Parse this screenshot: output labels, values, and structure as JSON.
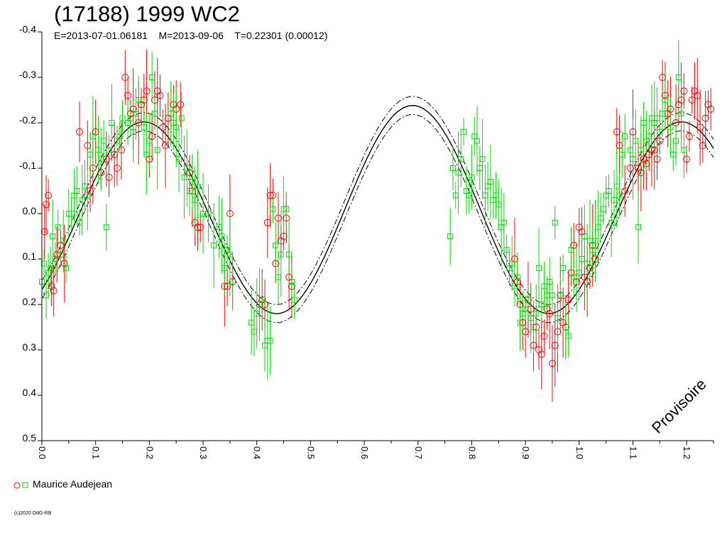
{
  "chart_data": {
    "type": "scatter",
    "title": "(17188) 1999 WC2",
    "subtitle": "E=2013-07-01.06181    M=2013-09-06    T=0.22301 (0.00012)",
    "stamp": "Provisoire",
    "copyright": "(c)2020 OdG-RB",
    "x_range": [
      0.0,
      1.25
    ],
    "y_range": [
      -0.4,
      0.5
    ],
    "y_inverted": true,
    "x_ticks": [
      "0.0",
      "0.1",
      "0.2",
      "0.3",
      "0.4",
      "0.5",
      "0.6",
      "0.7",
      "0.8",
      "0.9",
      "1.0",
      "1.1",
      "1.2"
    ],
    "y_ticks": [
      "-0.4",
      "-0.3",
      "-0.2",
      "-0.1",
      "0.0",
      "0.1",
      "0.2",
      "0.3",
      "0.4",
      "0.5"
    ],
    "legend": [
      {
        "label": "Maurice Audejean",
        "markers": [
          "red-circle",
          "green-square"
        ]
      }
    ],
    "colors": {
      "series_a": "#ff0000",
      "series_b": "#00dd00",
      "model": "#000000"
    },
    "model_curve": {
      "type": "fourier",
      "mean": 0.0,
      "amplitude": 0.22,
      "phase_of_max_brightness": 0.19,
      "period_fraction": 0.5,
      "envelope": 0.02
    },
    "series": [
      {
        "name": "Maurice Audejean",
        "marker": "circle",
        "color": "#ff0000",
        "points": [
          [
            0.005,
            0.04
          ],
          [
            0.008,
            -0.02
          ],
          [
            0.012,
            -0.04
          ],
          [
            0.018,
            0.16
          ],
          [
            0.022,
            0.17
          ],
          [
            0.028,
            0.09
          ],
          [
            0.035,
            0.07
          ],
          [
            0.042,
            0.11
          ],
          [
            0.07,
            -0.18
          ],
          [
            0.085,
            -0.15
          ],
          [
            0.09,
            -0.05
          ],
          [
            0.095,
            -0.1
          ],
          [
            0.1,
            -0.18
          ],
          [
            0.11,
            -0.09
          ],
          [
            0.12,
            -0.12
          ],
          [
            0.125,
            -0.08
          ],
          [
            0.135,
            -0.13
          ],
          [
            0.14,
            -0.1
          ],
          [
            0.148,
            -0.14
          ],
          [
            0.155,
            -0.3
          ],
          [
            0.16,
            -0.26
          ],
          [
            0.165,
            -0.22
          ],
          [
            0.17,
            -0.23
          ],
          [
            0.18,
            -0.2
          ],
          [
            0.185,
            -0.24
          ],
          [
            0.19,
            -0.25
          ],
          [
            0.195,
            -0.27
          ],
          [
            0.2,
            -0.12
          ],
          [
            0.205,
            -0.17
          ],
          [
            0.21,
            -0.25
          ],
          [
            0.215,
            -0.27
          ],
          [
            0.22,
            -0.26
          ],
          [
            0.225,
            -0.19
          ],
          [
            0.23,
            -0.15
          ],
          [
            0.235,
            -0.21
          ],
          [
            0.245,
            -0.24
          ],
          [
            0.25,
            -0.23
          ],
          [
            0.258,
            -0.24
          ],
          [
            0.275,
            -0.09
          ],
          [
            0.28,
            -0.05
          ],
          [
            0.285,
            0.02
          ],
          [
            0.29,
            0.03
          ],
          [
            0.295,
            0.03
          ],
          [
            0.34,
            0.16
          ],
          [
            0.345,
            0.16
          ],
          [
            0.35,
            0.0
          ],
          [
            0.355,
            0.15
          ],
          [
            0.405,
            0.2
          ],
          [
            0.41,
            0.19
          ],
          [
            0.415,
            0.2
          ],
          [
            0.42,
            0.02
          ],
          [
            0.425,
            -0.04
          ],
          [
            0.43,
            -0.04
          ],
          [
            0.435,
            0.11
          ],
          [
            0.44,
            0.01
          ],
          [
            0.445,
            0.06
          ],
          [
            0.45,
            0.05
          ],
          [
            0.455,
            0.01
          ],
          [
            0.46,
            0.14
          ],
          [
            0.465,
            0.16
          ],
          [
            0.88,
            0.1
          ],
          [
            0.885,
            0.15
          ],
          [
            0.89,
            0.2
          ],
          [
            0.895,
            0.24
          ],
          [
            0.9,
            0.26
          ],
          [
            0.905,
            0.19
          ],
          [
            0.91,
            0.21
          ],
          [
            0.915,
            0.29
          ],
          [
            0.92,
            0.25
          ],
          [
            0.925,
            0.3
          ],
          [
            0.93,
            0.31
          ],
          [
            0.935,
            0.27
          ],
          [
            0.94,
            0.21
          ],
          [
            0.945,
            0.22
          ],
          [
            0.95,
            0.33
          ],
          [
            0.955,
            0.29
          ],
          [
            0.96,
            0.26
          ],
          [
            0.965,
            0.18
          ],
          [
            0.97,
            0.24
          ],
          [
            0.975,
            0.25
          ],
          [
            0.98,
            0.19
          ],
          [
            0.985,
            0.13
          ],
          [
            0.99,
            0.07
          ],
          [
            0.995,
            0.15
          ],
          [
            1.0,
            0.03
          ],
          [
            1.005,
            0.04
          ],
          [
            1.01,
            0.14
          ],
          [
            1.015,
            0.15
          ],
          [
            1.02,
            0.12
          ],
          [
            1.025,
            0.07
          ],
          [
            1.03,
            0.1
          ],
          [
            1.07,
            -0.18
          ],
          [
            1.075,
            -0.15
          ],
          [
            1.085,
            -0.05
          ],
          [
            1.095,
            -0.1
          ],
          [
            1.1,
            -0.18
          ],
          [
            1.11,
            -0.1
          ],
          [
            1.115,
            -0.09
          ],
          [
            1.12,
            -0.12
          ],
          [
            1.125,
            -0.11
          ],
          [
            1.13,
            -0.13
          ],
          [
            1.135,
            -0.14
          ],
          [
            1.14,
            -0.14
          ],
          [
            1.145,
            -0.12
          ],
          [
            1.15,
            -0.16
          ],
          [
            1.155,
            -0.3
          ],
          [
            1.16,
            -0.26
          ],
          [
            1.165,
            -0.22
          ],
          [
            1.17,
            -0.23
          ],
          [
            1.18,
            -0.2
          ],
          [
            1.185,
            -0.24
          ],
          [
            1.19,
            -0.25
          ],
          [
            1.195,
            -0.27
          ],
          [
            1.2,
            -0.12
          ],
          [
            1.205,
            -0.17
          ],
          [
            1.21,
            -0.25
          ],
          [
            1.215,
            -0.27
          ],
          [
            1.22,
            -0.26
          ],
          [
            1.225,
            -0.19
          ],
          [
            1.23,
            -0.15
          ],
          [
            1.235,
            -0.21
          ],
          [
            1.24,
            -0.24
          ],
          [
            1.245,
            -0.23
          ]
        ]
      },
      {
        "name": "Maurice Audejean",
        "marker": "square",
        "color": "#00dd00",
        "points": [
          [
            0.0,
            0.15
          ],
          [
            0.004,
            0.11
          ],
          [
            0.008,
            0.18
          ],
          [
            0.012,
            0.13
          ],
          [
            0.016,
            0.12
          ],
          [
            0.02,
            0.05
          ],
          [
            0.025,
            0.1
          ],
          [
            0.03,
            0.03
          ],
          [
            0.035,
            0.09
          ],
          [
            0.04,
            0.06
          ],
          [
            0.045,
            0.12
          ],
          [
            0.05,
            0.0
          ],
          [
            0.055,
            0.0
          ],
          [
            0.06,
            -0.04
          ],
          [
            0.065,
            -0.05
          ],
          [
            0.07,
            0.02
          ],
          [
            0.075,
            -0.03
          ],
          [
            0.08,
            -0.06
          ],
          [
            0.085,
            -0.04
          ],
          [
            0.09,
            -0.13
          ],
          [
            0.095,
            -0.17
          ],
          [
            0.105,
            -0.14
          ],
          [
            0.11,
            -0.12
          ],
          [
            0.115,
            -0.16
          ],
          [
            0.12,
            0.03
          ],
          [
            0.125,
            -0.14
          ],
          [
            0.13,
            -0.2
          ],
          [
            0.14,
            -0.16
          ],
          [
            0.145,
            -0.17
          ],
          [
            0.15,
            -0.21
          ],
          [
            0.16,
            -0.2
          ],
          [
            0.165,
            -0.21
          ],
          [
            0.17,
            -0.18
          ],
          [
            0.175,
            -0.22
          ],
          [
            0.18,
            -0.25
          ],
          [
            0.19,
            -0.19
          ],
          [
            0.195,
            -0.13
          ],
          [
            0.2,
            -0.16
          ],
          [
            0.205,
            -0.3
          ],
          [
            0.21,
            -0.22
          ],
          [
            0.215,
            -0.14
          ],
          [
            0.24,
            -0.22
          ],
          [
            0.245,
            -0.2
          ],
          [
            0.25,
            -0.19
          ],
          [
            0.255,
            -0.12
          ],
          [
            0.26,
            -0.21
          ],
          [
            0.265,
            -0.08
          ],
          [
            0.27,
            -0.1
          ],
          [
            0.275,
            -0.05
          ],
          [
            0.28,
            -0.07
          ],
          [
            0.285,
            -0.03
          ],
          [
            0.29,
            -0.06
          ],
          [
            0.3,
            0.0
          ],
          [
            0.31,
            0.0
          ],
          [
            0.32,
            0.07
          ],
          [
            0.33,
            0.03
          ],
          [
            0.335,
            0.05
          ],
          [
            0.34,
            0.12
          ],
          [
            0.345,
            0.08
          ],
          [
            0.35,
            0.09
          ],
          [
            0.355,
            0.15
          ],
          [
            0.39,
            0.24
          ],
          [
            0.395,
            0.26
          ],
          [
            0.4,
            0.22
          ],
          [
            0.405,
            0.2
          ],
          [
            0.41,
            0.19
          ],
          [
            0.415,
            0.29
          ],
          [
            0.42,
            0.28
          ],
          [
            0.425,
            0.28
          ],
          [
            0.43,
            -0.01
          ],
          [
            0.435,
            0.07
          ],
          [
            0.44,
            0.14
          ],
          [
            0.445,
            0.09
          ],
          [
            0.45,
            -0.01
          ],
          [
            0.455,
            -0.01
          ],
          [
            0.46,
            0.09
          ],
          [
            0.465,
            0.15
          ],
          [
            0.47,
            0.19
          ],
          [
            0.76,
            0.05
          ],
          [
            0.765,
            -0.1
          ],
          [
            0.77,
            -0.04
          ],
          [
            0.775,
            -0.09
          ],
          [
            0.78,
            -0.12
          ],
          [
            0.785,
            -0.18
          ],
          [
            0.79,
            -0.05
          ],
          [
            0.795,
            -0.04
          ],
          [
            0.8,
            -0.08
          ],
          [
            0.805,
            -0.17
          ],
          [
            0.81,
            -0.16
          ],
          [
            0.815,
            -0.1
          ],
          [
            0.82,
            -0.12
          ],
          [
            0.825,
            -0.04
          ],
          [
            0.83,
            -0.06
          ],
          [
            0.835,
            -0.07
          ],
          [
            0.84,
            -0.03
          ],
          [
            0.845,
            -0.04
          ],
          [
            0.85,
            -0.02
          ],
          [
            0.855,
            0.03
          ],
          [
            0.86,
            0.02
          ],
          [
            0.865,
            0.08
          ],
          [
            0.87,
            0.12
          ],
          [
            0.875,
            0.11
          ],
          [
            0.88,
            0.16
          ],
          [
            0.885,
            0.14
          ],
          [
            0.89,
            0.24
          ],
          [
            0.895,
            0.22
          ],
          [
            0.9,
            0.21
          ],
          [
            0.905,
            0.19
          ],
          [
            0.91,
            0.23
          ],
          [
            0.915,
            0.25
          ],
          [
            0.92,
            0.22
          ],
          [
            0.925,
            0.12
          ],
          [
            0.93,
            0.2
          ],
          [
            0.935,
            0.16
          ],
          [
            0.94,
            0.18
          ],
          [
            0.945,
            0.15
          ],
          [
            0.95,
            0.18
          ],
          [
            0.955,
            0.02
          ],
          [
            0.96,
            0.23
          ],
          [
            0.965,
            0.18
          ],
          [
            0.97,
            0.12
          ],
          [
            0.975,
            0.25
          ],
          [
            0.98,
            0.27
          ],
          [
            0.985,
            0.08
          ],
          [
            0.99,
            0.14
          ],
          [
            0.995,
            0.14
          ],
          [
            1.0,
            0.13
          ],
          [
            1.005,
            0.1
          ],
          [
            1.01,
            0.05
          ],
          [
            1.015,
            0.11
          ],
          [
            1.02,
            0.06
          ],
          [
            1.025,
            0.08
          ],
          [
            1.03,
            0.06
          ],
          [
            1.035,
            0.03
          ],
          [
            1.04,
            0.01
          ],
          [
            1.045,
            -0.01
          ],
          [
            1.05,
            -0.04
          ],
          [
            1.055,
            -0.05
          ],
          [
            1.06,
            0.02
          ],
          [
            1.065,
            -0.03
          ],
          [
            1.07,
            -0.06
          ],
          [
            1.075,
            -0.04
          ],
          [
            1.08,
            -0.13
          ],
          [
            1.085,
            -0.17
          ],
          [
            1.095,
            -0.14
          ],
          [
            1.1,
            -0.12
          ],
          [
            1.105,
            -0.16
          ],
          [
            1.11,
            0.03
          ],
          [
            1.115,
            -0.14
          ],
          [
            1.12,
            -0.2
          ],
          [
            1.125,
            -0.16
          ],
          [
            1.13,
            -0.17
          ],
          [
            1.135,
            -0.21
          ],
          [
            1.14,
            -0.2
          ],
          [
            1.145,
            -0.21
          ],
          [
            1.15,
            -0.18
          ],
          [
            1.155,
            -0.22
          ],
          [
            1.16,
            -0.25
          ],
          [
            1.17,
            -0.19
          ],
          [
            1.175,
            -0.13
          ],
          [
            1.18,
            -0.16
          ],
          [
            1.185,
            -0.3
          ],
          [
            1.19,
            -0.22
          ],
          [
            1.195,
            -0.14
          ]
        ]
      }
    ]
  }
}
